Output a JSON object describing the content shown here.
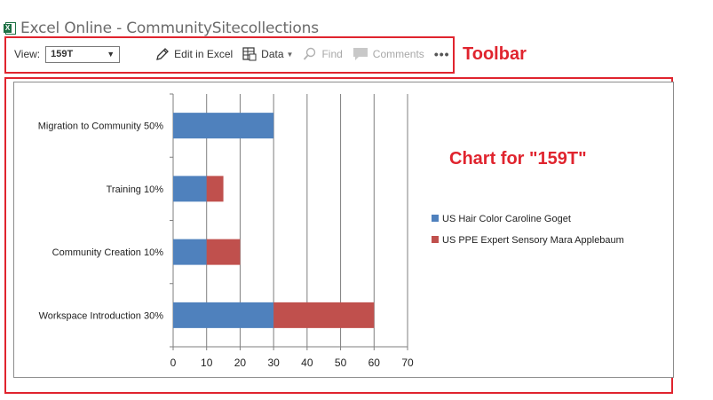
{
  "window": {
    "title": "Excel Online - CommunitySitecollections",
    "icon": "excel-icon"
  },
  "toolbar": {
    "view_label": "View:",
    "view_value": "159T",
    "edit_label": "Edit in Excel",
    "data_label": "Data",
    "find_label": "Find",
    "comments_label": "Comments",
    "more_label": "•••"
  },
  "annotations": {
    "toolbar_label": "Toolbar",
    "chart_label": "Chart for \"159T\""
  },
  "colors": {
    "series1": "#4f81bd",
    "series2": "#c0504d",
    "annotation": "#e0242e"
  },
  "chart_data": {
    "type": "bar",
    "orientation": "horizontal",
    "stacked": true,
    "categories": [
      "Migration to Community 50%",
      "Training 10%",
      "Community Creation 10%",
      "Workspace Introduction 30%"
    ],
    "series": [
      {
        "name": "US Hair Color Caroline Goget",
        "values": [
          30,
          10,
          10,
          30
        ],
        "color": "#4f81bd"
      },
      {
        "name": "US PPE Expert Sensory Mara Applebaum",
        "values": [
          0,
          5,
          10,
          30
        ],
        "color": "#c0504d"
      }
    ],
    "xlim": [
      0,
      70
    ],
    "xticks": [
      0,
      10,
      20,
      30,
      40,
      50,
      60,
      70
    ],
    "grid": true,
    "legend": "right"
  }
}
